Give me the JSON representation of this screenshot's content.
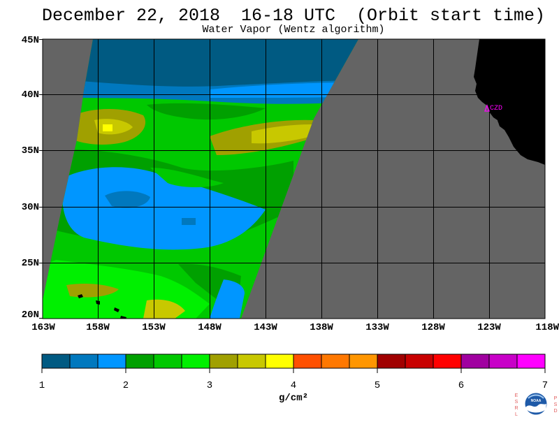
{
  "title": "December 22, 2018  16-18 UTC  (Orbit start time)",
  "subtitle": "Water Vapor (Wentz algorithm)",
  "map": {
    "lat_ticks": [
      "45N",
      "40N",
      "35N",
      "30N",
      "25N",
      "20N"
    ],
    "lon_ticks": [
      "163W",
      "158W",
      "153W",
      "148W",
      "143W",
      "138W",
      "133W",
      "128W",
      "123W",
      "118W"
    ],
    "station_label": "CZD",
    "colors": {
      "no_data": "#646464",
      "land": "#000000",
      "station": "#ff00ff",
      "grid": "#000000"
    }
  },
  "colorbar": {
    "ticks": [
      "1",
      "2",
      "3",
      "4",
      "5",
      "6",
      "7"
    ],
    "units": "g/cm²",
    "colors": [
      "#005a82",
      "#0078be",
      "#0096ff",
      "#00a000",
      "#00c800",
      "#00f000",
      "#a0a000",
      "#c8c800",
      "#ffff00",
      "#ff5000",
      "#ff7800",
      "#ff9600",
      "#a00000",
      "#c80000",
      "#ff0000",
      "#a000a0",
      "#c800c8",
      "#ff00ff"
    ]
  },
  "logo": {
    "left_letters": "ESRL",
    "right_letters": "PSD",
    "text": "NOAA"
  }
}
